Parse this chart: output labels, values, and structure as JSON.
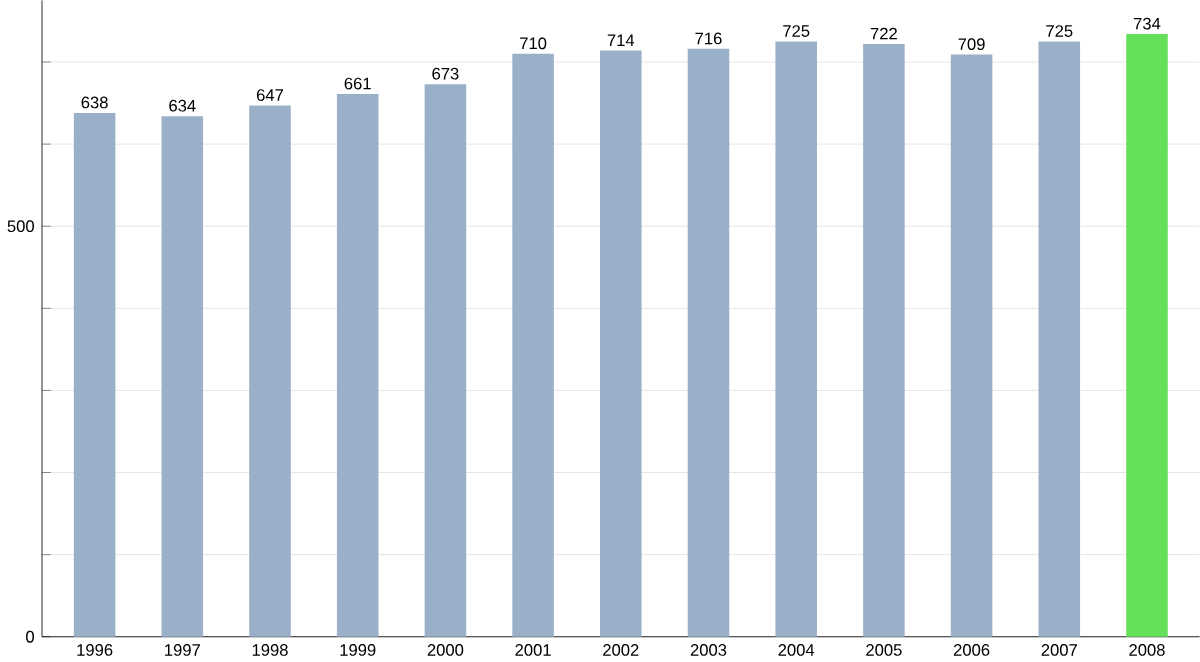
{
  "chart_data": {
    "type": "bar",
    "categories": [
      "1996",
      "1997",
      "1998",
      "1999",
      "2000",
      "2001",
      "2002",
      "2003",
      "2004",
      "2005",
      "2006",
      "2007",
      "2008"
    ],
    "values": [
      638,
      634,
      647,
      661,
      673,
      710,
      714,
      716,
      725,
      722,
      709,
      725,
      734
    ],
    "colors": [
      "#9ab0c9",
      "#9ab0c9",
      "#9ab0c9",
      "#9ab0c9",
      "#9ab0c9",
      "#9ab0c9",
      "#9ab0c9",
      "#9ab0c9",
      "#9ab0c9",
      "#9ab0c9",
      "#9ab0c9",
      "#9ab0c9",
      "#66e05a"
    ],
    "ylim": [
      0,
      775
    ],
    "yticks": [
      0,
      {
        "value": 100,
        "label": null
      },
      {
        "value": 200,
        "label": null
      },
      {
        "value": 300,
        "label": null
      },
      {
        "value": 400,
        "label": null
      },
      500,
      {
        "value": 600,
        "label": null
      },
      {
        "value": 700,
        "label": null
      }
    ],
    "grid": "y",
    "data_labels": true
  }
}
